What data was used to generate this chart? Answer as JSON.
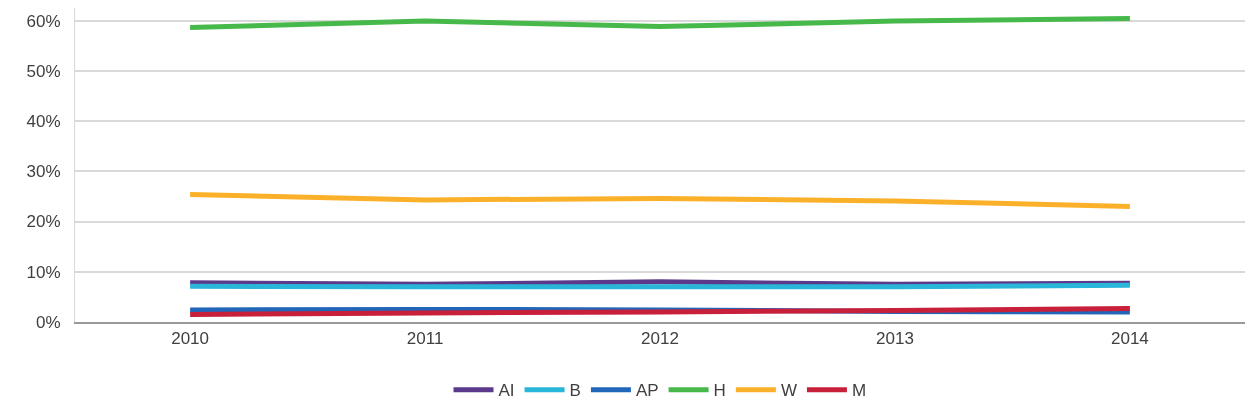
{
  "chart_data": {
    "type": "line",
    "categories": [
      "2010",
      "2011",
      "2012",
      "2013",
      "2014"
    ],
    "series": [
      {
        "name": "AI",
        "color": "#5b3a8c",
        "values": [
          7.8,
          7.5,
          8.0,
          7.5,
          7.7
        ]
      },
      {
        "name": "B",
        "color": "#29b6d8",
        "values": [
          7.1,
          7.0,
          7.0,
          7.0,
          7.3
        ]
      },
      {
        "name": "AP",
        "color": "#2166b8",
        "values": [
          2.4,
          2.5,
          2.4,
          2.1,
          2.0
        ]
      },
      {
        "name": "H",
        "color": "#46b94a",
        "values": [
          58.6,
          59.9,
          58.8,
          59.9,
          60.4
        ]
      },
      {
        "name": "W",
        "color": "#fbb02a",
        "values": [
          25.4,
          24.3,
          24.6,
          24.1,
          23.0
        ]
      },
      {
        "name": "M",
        "color": "#c8203a",
        "values": [
          1.5,
          1.8,
          2.0,
          2.3,
          2.7
        ]
      }
    ],
    "ylim": [
      0,
      62.5
    ],
    "yticks": [
      {
        "value": 0,
        "label": "0%"
      },
      {
        "value": 10,
        "label": "10%"
      },
      {
        "value": 20,
        "label": "20%"
      },
      {
        "value": 30,
        "label": "30%"
      },
      {
        "value": 40,
        "label": "40%"
      },
      {
        "value": 50,
        "label": "50%"
      },
      {
        "value": 60,
        "label": "60%"
      }
    ],
    "grid": "y",
    "legend": "bottom",
    "marker": "none",
    "line_style": "solid"
  }
}
